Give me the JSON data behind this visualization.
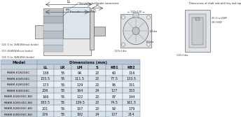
{
  "table_header_main": "Dimensions (mm)",
  "table_columns": [
    "LL",
    "LR",
    "LM",
    "S",
    "KB1",
    "KB2"
  ],
  "table_data": [
    [
      "R88M-K1K030C",
      "138",
      "55",
      "94",
      "22",
      "60",
      "116"
    ],
    [
      "R88M-K1K530C",
      "155.5",
      "55",
      "111.5",
      "22",
      "77.5",
      "133.5"
    ],
    [
      "R88M-K2K030C",
      "173",
      "55",
      "129",
      "22",
      "95",
      "151"
    ],
    [
      "R88M-K3K030C",
      "206",
      "55",
      "164",
      "24",
      "127",
      "155"
    ],
    [
      "R88M-K1K030C-BO",
      "166",
      "55",
      "122",
      "22",
      "87",
      "144"
    ],
    [
      "R88M-K1K530C-BO",
      "183.5",
      "55",
      "139.5",
      "22",
      "74.5",
      "161.5"
    ],
    [
      "R88M-K2K030C-BO",
      "201",
      "55",
      "157",
      "22",
      "92",
      "179"
    ],
    [
      "R88M-K3K030C-BO",
      "226",
      "55",
      "192",
      "24",
      "127",
      "214"
    ]
  ],
  "header_bg": "#b8c8d8",
  "col_header_bg": "#c8d4dc",
  "row_bg_odd": "#e8eef4",
  "row_bg_even": "#d8e0e8",
  "model_bg_odd": "#d0d4d8",
  "model_bg_even": "#c4ccd4",
  "border_color": "#7a8a96",
  "text_color": "#111111",
  "fig_bg": "#ffffff",
  "diagram_bg": "#f0f0f0",
  "top_label1": "Servomotor/brake connector",
  "top_label2": "Encoder connector",
  "top_label3": "Dimensions of shaft end with key and tap",
  "dim_labels_top": [
    "LL",
    "LR",
    "LM"
  ],
  "brake_notes": [
    "116 (1 to 3kW/Without brake)",
    "133 (4kW/Without brake)",
    "116 (1 to 3kW/With brake)"
  ]
}
